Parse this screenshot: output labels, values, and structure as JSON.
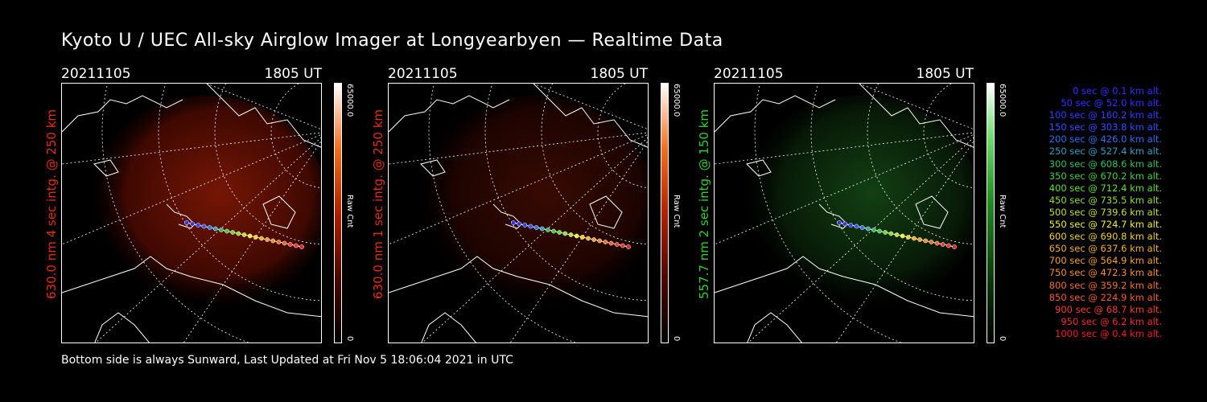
{
  "title": "Kyoto U / UEC All-sky Airglow Imager at Longyearbyen — Realtime Data",
  "footer": "Bottom side is always Sunward, Last Updated at Fri Nov  5 18:06:04 2021 in UTC",
  "panels": [
    {
      "date": "20211105",
      "time": "1805 UT",
      "ylabel": "630.0 nm 4 sec intg. @ 250 km",
      "ylabel_color": "#e03010",
      "cbar_max": "65000.0",
      "cbar_min": "0",
      "cbar_label": "Raw Cnt",
      "cmap": "red",
      "intensity": 0.85
    },
    {
      "date": "20211105",
      "time": "1805 UT",
      "ylabel": "630.0 nm 1 sec intg. @ 250 km",
      "ylabel_color": "#e03010",
      "cbar_max": "65000.0",
      "cbar_min": "0",
      "cbar_label": "Raw Cnt",
      "cmap": "red",
      "intensity": 0.4
    },
    {
      "date": "20211105",
      "time": "1805 UT",
      "ylabel": "557.7 nm 2 sec intg. @ 150 km",
      "ylabel_color": "#30d030",
      "cbar_max": "65000.0",
      "cbar_min": "0",
      "cbar_label": "Raw Cnt",
      "cmap": "green",
      "intensity": 0.6
    }
  ],
  "legend": [
    {
      "text": "0 sec @    0.1 km alt.",
      "color": "#3030ff"
    },
    {
      "text": "50 sec @   52.0 km alt.",
      "color": "#3030ff"
    },
    {
      "text": "100 sec @  160.2 km alt.",
      "color": "#3040ff"
    },
    {
      "text": "150 sec @  303.8 km alt.",
      "color": "#3050ff"
    },
    {
      "text": "200 sec @  426.0 km alt.",
      "color": "#3070f0"
    },
    {
      "text": "250 sec @  527.4 km alt.",
      "color": "#30a0c0"
    },
    {
      "text": "300 sec @  608.6 km alt.",
      "color": "#30c060"
    },
    {
      "text": "350 sec @  670.2 km alt.",
      "color": "#40d040"
    },
    {
      "text": "400 sec @  712.4 km alt.",
      "color": "#60e030"
    },
    {
      "text": "450 sec @  735.5 km alt.",
      "color": "#90e030"
    },
    {
      "text": "500 sec @  739.6 km alt.",
      "color": "#c0e030"
    },
    {
      "text": "550 sec @  724.7 km alt.",
      "color": "#f0f030"
    },
    {
      "text": "600 sec @  690.8 km alt.",
      "color": "#f0d030"
    },
    {
      "text": "650 sec @  637.6 km alt.",
      "color": "#f0b030"
    },
    {
      "text": "700 sec @  564.9 km alt.",
      "color": "#f0a030"
    },
    {
      "text": "750 sec @  472.3 km alt.",
      "color": "#f09030"
    },
    {
      "text": "800 sec @  359.2 km alt.",
      "color": "#f07030"
    },
    {
      "text": "850 sec @  224.9 km alt.",
      "color": "#f06030"
    },
    {
      "text": "900 sec @   68.7 km alt.",
      "color": "#f04030"
    },
    {
      "text": "950 sec @    6.2 km alt.",
      "color": "#f03030"
    },
    {
      "text": "1000 sec @    0.4 km alt.",
      "color": "#f02020"
    }
  ]
}
